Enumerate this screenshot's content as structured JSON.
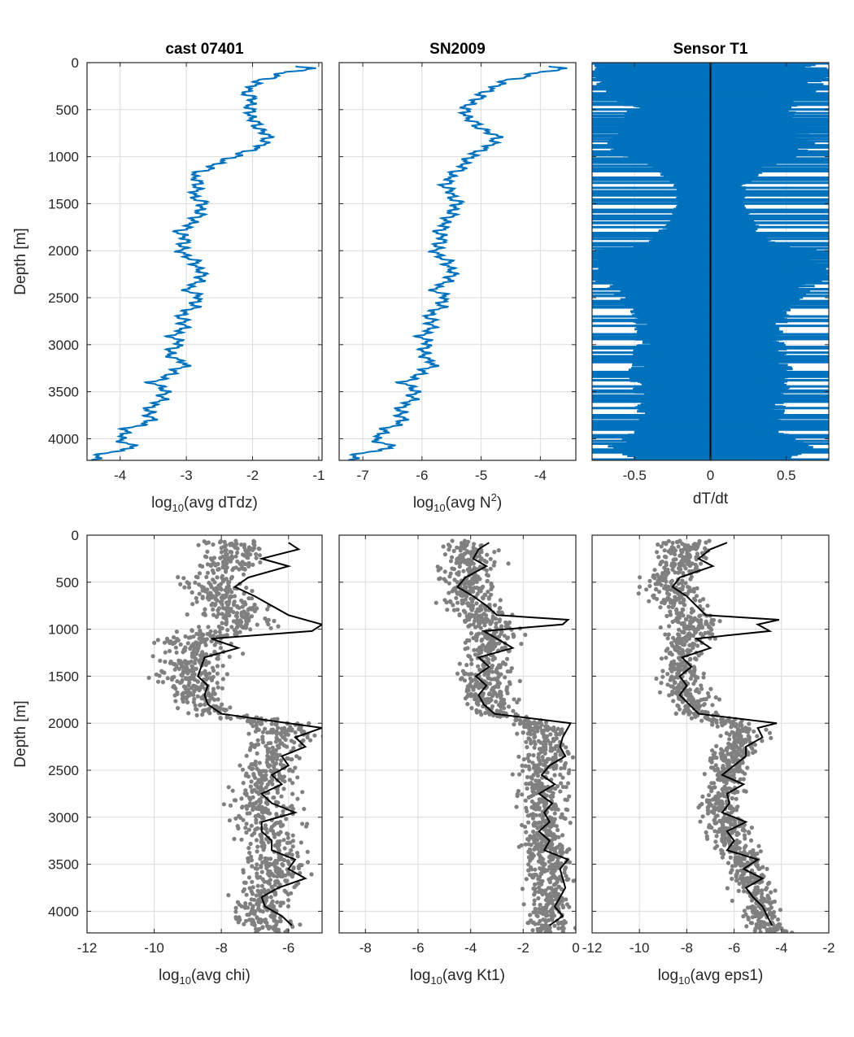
{
  "colors": {
    "profile_line": "#0072BD",
    "scatter_points": "#808080",
    "mean_line": "#000000",
    "grid": "#dcdcdc",
    "axes": "#262626"
  },
  "chart_data": [
    {
      "id": "p1",
      "type": "line",
      "title": "cast 07401",
      "xlabel": {
        "pre": "log",
        "sub": "10",
        "mid": "(avg dTdz)",
        "sup": "",
        "post": ""
      },
      "ylabel": "Depth [m]",
      "xlim": [
        -4.5,
        -0.95
      ],
      "xticks": [
        -4,
        -3,
        -2,
        -1
      ],
      "ylim": [
        0,
        4230
      ],
      "yticks": [
        0,
        500,
        1000,
        1500,
        2000,
        2500,
        3000,
        3500,
        4000
      ],
      "y_reversed": true,
      "grid": true,
      "series": [
        {
          "depth": [
            40,
            60,
            100,
            150,
            200,
            300,
            400,
            500,
            600,
            700,
            800,
            900,
            1000,
            1100,
            1200,
            1300,
            1400,
            1500,
            1600,
            1700,
            1800,
            1900,
            2000,
            2100,
            2200,
            2300,
            2400,
            2500,
            2600,
            2700,
            2800,
            2900,
            3000,
            3100,
            3200,
            3300,
            3400,
            3500,
            3600,
            3700,
            3800,
            3900,
            4000,
            4100,
            4150,
            4200
          ],
          "value": [
            -1.3,
            -1.0,
            -1.5,
            -1.7,
            -1.9,
            -2.1,
            -2.0,
            -2.05,
            -2.0,
            -1.9,
            -1.75,
            -1.9,
            -2.3,
            -2.6,
            -2.9,
            -2.8,
            -2.9,
            -2.75,
            -2.8,
            -2.9,
            -3.1,
            -3.0,
            -3.1,
            -2.9,
            -2.8,
            -2.75,
            -3.0,
            -2.8,
            -2.9,
            -3.1,
            -3.0,
            -3.2,
            -3.1,
            -3.3,
            -3.0,
            -3.2,
            -3.5,
            -3.3,
            -3.4,
            -3.6,
            -3.5,
            -3.9,
            -4.0,
            -3.8,
            -4.2,
            -4.4
          ]
        }
      ]
    },
    {
      "id": "p2",
      "type": "line",
      "title": "SN2009",
      "xlabel": {
        "pre": "log",
        "sub": "10",
        "mid": "(avg N",
        "sup": "2",
        "post": ")"
      },
      "xlim": [
        -7.4,
        -3.4
      ],
      "xticks": [
        -7,
        -6,
        -5,
        -4
      ],
      "ylim": [
        0,
        4230
      ],
      "yticks": [
        0,
        500,
        1000,
        1500,
        2000,
        2500,
        3000,
        3500,
        4000
      ],
      "y_reversed": true,
      "grid": true,
      "series": [
        {
          "depth": [
            40,
            60,
            100,
            150,
            200,
            300,
            400,
            500,
            600,
            700,
            800,
            900,
            1000,
            1100,
            1200,
            1300,
            1400,
            1500,
            1600,
            1700,
            1800,
            1900,
            2000,
            2100,
            2200,
            2300,
            2400,
            2500,
            2600,
            2700,
            2800,
            2900,
            3000,
            3100,
            3200,
            3300,
            3400,
            3500,
            3600,
            3700,
            3800,
            3900,
            4000,
            4100,
            4150,
            4200
          ],
          "value": [
            -3.8,
            -3.5,
            -4.0,
            -4.3,
            -4.6,
            -4.9,
            -5.1,
            -5.3,
            -5.2,
            -5.0,
            -4.7,
            -4.9,
            -5.2,
            -5.3,
            -5.5,
            -5.6,
            -5.5,
            -5.4,
            -5.5,
            -5.6,
            -5.7,
            -5.65,
            -5.8,
            -5.6,
            -5.5,
            -5.5,
            -5.8,
            -5.6,
            -5.7,
            -5.9,
            -5.8,
            -6.0,
            -5.9,
            -6.0,
            -5.8,
            -6.0,
            -6.3,
            -6.1,
            -6.2,
            -6.4,
            -6.3,
            -6.6,
            -6.8,
            -6.5,
            -7.0,
            -7.2
          ]
        }
      ]
    },
    {
      "id": "p3",
      "type": "line",
      "title": "Sensor T1",
      "xlabel": {
        "pre": "",
        "sub": "",
        "mid": "dT/dt",
        "sup": "",
        "post": ""
      },
      "xlim": [
        -0.78,
        0.78
      ],
      "xticks": [
        -0.5,
        0,
        0.5
      ],
      "ylim": [
        0,
        4230
      ],
      "yticks": [
        0,
        500,
        1000,
        1500,
        2000,
        2500,
        3000,
        3500,
        4000
      ],
      "y_reversed": true,
      "grid": true,
      "zero_line": true,
      "envelope": {
        "depth": [
          0,
          200,
          300,
          500,
          700,
          900,
          1000,
          1100,
          1300,
          1500,
          1700,
          1800,
          1950,
          2000,
          2300,
          2600,
          2800,
          3000,
          3300,
          3600,
          3900,
          4100,
          4230
        ],
        "amplitude": [
          0.78,
          0.78,
          0.7,
          0.55,
          0.65,
          0.7,
          0.6,
          0.4,
          0.25,
          0.22,
          0.3,
          0.35,
          0.45,
          0.78,
          0.78,
          0.55,
          0.5,
          0.5,
          0.55,
          0.5,
          0.48,
          0.7,
          0.5
        ]
      }
    },
    {
      "id": "p4",
      "type": "scatter",
      "xlabel": {
        "pre": "log",
        "sub": "10",
        "mid": "(avg chi)",
        "sup": "",
        "post": ""
      },
      "ylabel": "Depth [m]",
      "xlim": [
        -12,
        -5
      ],
      "xticks": [
        -12,
        -10,
        -8,
        -6
      ],
      "ylim": [
        0,
        4230
      ],
      "yticks": [
        0,
        500,
        1000,
        1500,
        2000,
        2500,
        3000,
        3500,
        4000
      ],
      "y_reversed": true,
      "grid": true,
      "scatter_profile": {
        "depth": [
          100,
          300,
          500,
          700,
          900,
          1000,
          1100,
          1300,
          1500,
          1700,
          1900,
          2000,
          2100,
          2300,
          2500,
          2700,
          2900,
          3100,
          3300,
          3500,
          3700,
          3900,
          4100,
          4200
        ],
        "center": [
          -7.5,
          -7.8,
          -8.3,
          -8.0,
          -7.5,
          -7.5,
          -8.8,
          -8.8,
          -8.9,
          -8.6,
          -8.2,
          -6.5,
          -6.2,
          -6.3,
          -6.5,
          -6.8,
          -6.8,
          -6.7,
          -6.5,
          -6.3,
          -6.5,
          -6.8,
          -6.8,
          -6.5
        ],
        "spread": [
          1.0,
          1.0,
          1.0,
          1.0,
          1.1,
          1.2,
          1.0,
          1.0,
          1.0,
          0.9,
          0.9,
          0.9,
          0.9,
          0.9,
          0.9,
          0.9,
          0.9,
          0.9,
          0.9,
          0.9,
          0.9,
          0.9,
          0.9,
          0.9
        ]
      },
      "series": [
        {
          "depth": [
            80,
            150,
            250,
            330,
            450,
            550,
            650,
            750,
            850,
            950,
            1020,
            1100,
            1200,
            1300,
            1400,
            1500,
            1600,
            1700,
            1800,
            1900,
            2000,
            2050,
            2150,
            2250,
            2350,
            2450,
            2550,
            2650,
            2750,
            2850,
            2950,
            3050,
            3150,
            3250,
            3350,
            3450,
            3550,
            3650,
            3750,
            3850,
            3950,
            4050,
            4150
          ],
          "value": [
            -6.0,
            -5.7,
            -6.8,
            -6.0,
            -7.2,
            -7.6,
            -7.0,
            -6.5,
            -6.0,
            -5.0,
            -5.3,
            -8.3,
            -7.5,
            -8.5,
            -8.6,
            -8.7,
            -8.4,
            -8.5,
            -8.4,
            -8.0,
            -6.0,
            -5.0,
            -5.8,
            -5.5,
            -6.2,
            -6.0,
            -6.5,
            -6.2,
            -6.8,
            -6.5,
            -5.8,
            -6.8,
            -6.8,
            -6.5,
            -6.5,
            -5.8,
            -6.0,
            -5.5,
            -6.3,
            -6.8,
            -6.7,
            -6.2,
            -5.9
          ]
        }
      ]
    },
    {
      "id": "p5",
      "type": "scatter",
      "xlabel": {
        "pre": "log",
        "sub": "10",
        "mid": "(avg Kt1)",
        "sup": "",
        "post": ""
      },
      "xlim": [
        -9,
        0
      ],
      "xticks": [
        -8,
        -6,
        -4,
        -2,
        0
      ],
      "ylim": [
        0,
        4230
      ],
      "yticks": [
        0,
        500,
        1000,
        1500,
        2000,
        2500,
        3000,
        3500,
        4000
      ],
      "y_reversed": true,
      "grid": true,
      "scatter_profile": {
        "depth": [
          100,
          300,
          500,
          700,
          900,
          1000,
          1100,
          1300,
          1500,
          1700,
          1900,
          2000,
          2100,
          2300,
          2500,
          2700,
          2900,
          3100,
          3300,
          3500,
          3700,
          3900,
          4100,
          4200
        ],
        "center": [
          -4.2,
          -4.0,
          -4.2,
          -4.0,
          -3.5,
          -3.0,
          -3.2,
          -3.4,
          -3.5,
          -3.3,
          -3.0,
          -1.5,
          -1.2,
          -1.0,
          -1.2,
          -1.3,
          -1.2,
          -1.2,
          -1.2,
          -1.0,
          -1.0,
          -1.0,
          -1.1,
          -1.0
        ],
        "spread": [
          1.0,
          1.0,
          1.0,
          1.0,
          1.0,
          1.0,
          1.0,
          0.9,
          0.9,
          0.9,
          0.9,
          0.9,
          0.9,
          0.9,
          0.9,
          0.9,
          0.9,
          0.9,
          0.9,
          0.9,
          0.9,
          0.9,
          0.9,
          0.9
        ]
      },
      "series": [
        {
          "depth": [
            80,
            150,
            250,
            330,
            450,
            550,
            650,
            750,
            850,
            900,
            950,
            1020,
            1100,
            1200,
            1300,
            1400,
            1500,
            1600,
            1700,
            1800,
            1900,
            2000,
            2050,
            2150,
            2250,
            2350,
            2450,
            2550,
            2650,
            2750,
            2850,
            2950,
            3050,
            3150,
            3250,
            3350,
            3450,
            3550,
            3650,
            3750,
            3850,
            3950,
            4050,
            4150
          ],
          "value": [
            -3.3,
            -3.7,
            -3.9,
            -3.4,
            -4.2,
            -4.5,
            -3.9,
            -3.4,
            -3.0,
            -0.3,
            -0.5,
            -3.5,
            -3.0,
            -2.4,
            -3.7,
            -3.3,
            -3.8,
            -3.4,
            -3.7,
            -3.5,
            -3.1,
            -0.2,
            -0.3,
            -0.5,
            -0.6,
            -0.4,
            -1.0,
            -1.3,
            -0.8,
            -1.4,
            -0.9,
            -1.2,
            -1.0,
            -1.4,
            -1.0,
            -1.2,
            -0.3,
            -0.6,
            -0.5,
            -0.4,
            -0.6,
            -0.8,
            -0.5,
            -1.0
          ]
        }
      ]
    },
    {
      "id": "p6",
      "type": "scatter",
      "xlabel": {
        "pre": "log",
        "sub": "10",
        "mid": "(avg eps1)",
        "sup": "",
        "post": ""
      },
      "xlim": [
        -12,
        -2
      ],
      "xticks": [
        -12,
        -10,
        -8,
        -6,
        -4,
        -2
      ],
      "ylim": [
        0,
        4230
      ],
      "yticks": [
        0,
        500,
        1000,
        1500,
        2000,
        2500,
        3000,
        3500,
        4000
      ],
      "y_reversed": true,
      "grid": true,
      "scatter_profile": {
        "depth": [
          100,
          300,
          500,
          700,
          900,
          1000,
          1100,
          1300,
          1500,
          1700,
          1900,
          2000,
          2100,
          2300,
          2500,
          2700,
          2900,
          3100,
          3300,
          3500,
          3700,
          3900,
          4100,
          4200
        ],
        "center": [
          -8.0,
          -8.3,
          -8.8,
          -8.5,
          -7.8,
          -7.6,
          -8.0,
          -8.2,
          -8.2,
          -8.0,
          -7.5,
          -6.0,
          -5.5,
          -6.0,
          -6.3,
          -6.5,
          -6.5,
          -6.3,
          -6.0,
          -5.5,
          -5.3,
          -5.0,
          -4.8,
          -4.5
        ],
        "spread": [
          1.1,
          1.1,
          1.1,
          1.1,
          1.1,
          1.2,
          1.0,
          0.9,
          0.9,
          0.9,
          0.9,
          0.9,
          0.9,
          0.9,
          0.9,
          0.9,
          0.9,
          0.9,
          0.9,
          0.9,
          0.9,
          0.9,
          0.9,
          0.9
        ]
      },
      "series": [
        {
          "depth": [
            80,
            150,
            250,
            330,
            450,
            550,
            650,
            750,
            850,
            900,
            950,
            1020,
            1100,
            1200,
            1300,
            1400,
            1500,
            1600,
            1700,
            1800,
            1900,
            2000,
            2050,
            2150,
            2250,
            2350,
            2450,
            2550,
            2650,
            2750,
            2850,
            2950,
            3050,
            3150,
            3250,
            3350,
            3450,
            3550,
            3650,
            3750,
            3850,
            3950,
            4050,
            4150
          ],
          "value": [
            -6.3,
            -7.0,
            -7.5,
            -6.9,
            -8.3,
            -8.6,
            -8.0,
            -7.6,
            -7.2,
            -4.1,
            -5.0,
            -4.5,
            -7.6,
            -7.0,
            -8.2,
            -7.8,
            -8.3,
            -8.0,
            -8.3,
            -7.9,
            -7.5,
            -4.2,
            -5.0,
            -4.8,
            -5.5,
            -5.5,
            -6.0,
            -6.5,
            -5.6,
            -6.3,
            -6.2,
            -6.5,
            -5.5,
            -6.3,
            -6.0,
            -6.3,
            -5.0,
            -5.6,
            -4.8,
            -5.5,
            -5.2,
            -4.8,
            -4.6,
            -4.4
          ]
        }
      ]
    }
  ]
}
